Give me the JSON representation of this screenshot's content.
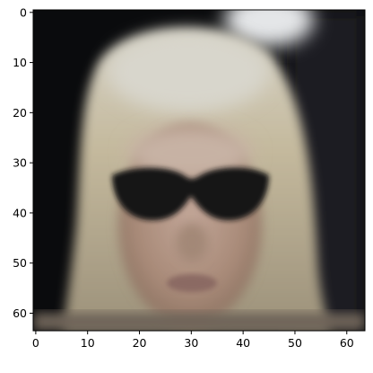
{
  "figure": {
    "image_description": "",
    "x_axis": {
      "ticks": [
        "0",
        "10",
        "20",
        "30",
        "40",
        "50",
        "60"
      ],
      "values": [
        0,
        10,
        20,
        30,
        40,
        50,
        60
      ],
      "range": [
        -0.5,
        63.5
      ]
    },
    "y_axis": {
      "ticks": [
        "0",
        "10",
        "20",
        "30",
        "40",
        "50",
        "60"
      ],
      "values": [
        0,
        10,
        20,
        30,
        40,
        50,
        60
      ],
      "range": [
        63.5,
        -0.5
      ]
    },
    "colors": {
      "background": "#060708",
      "hair": "#c3b79a",
      "skin": "#b49684",
      "glasses": "#141414",
      "frame": "#000000"
    }
  }
}
